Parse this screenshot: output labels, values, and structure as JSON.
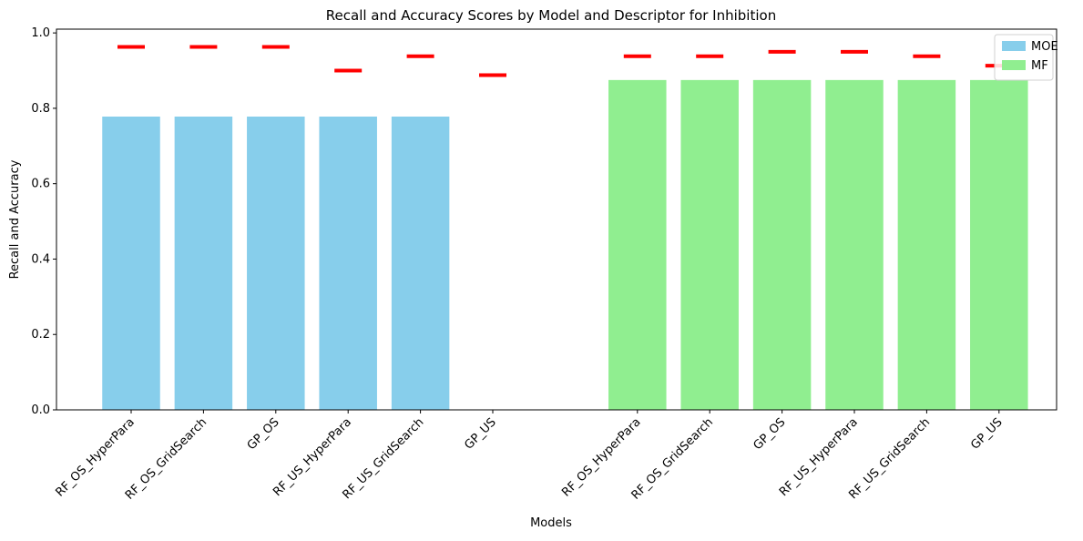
{
  "chart_data": {
    "type": "bar",
    "title": "Recall and Accuracy Scores by Model and Descriptor for Inhibition",
    "xlabel": "Models",
    "ylabel": "Recall and Accuracy",
    "ylim": [
      0,
      1.01
    ],
    "yticks": [
      0.0,
      0.2,
      0.4,
      0.6,
      0.8,
      1.0
    ],
    "ytick_labels": [
      "0.0",
      "0.2",
      "0.4",
      "0.6",
      "0.8",
      "1.0"
    ],
    "legend_position": "top-right",
    "groups": [
      {
        "name": "MOE",
        "color": "#87CEEB",
        "categories": [
          "RF_OS_HyperPara",
          "RF_OS_GridSearch",
          "GP_OS",
          "RF_US_HyperPara",
          "RF_US_GridSearch",
          "GP_US"
        ],
        "recall": [
          0.778,
          0.778,
          0.778,
          0.778,
          0.778,
          0.0
        ],
        "accuracy": [
          0.963,
          0.963,
          0.963,
          0.9,
          0.938,
          0.888
        ]
      },
      {
        "name": "MF",
        "color": "#90EE90",
        "categories": [
          "RF_OS_HyperPara",
          "RF_OS_GridSearch",
          "GP_OS",
          "RF_US_HyperPara",
          "RF_US_GridSearch",
          "GP_US"
        ],
        "recall": [
          0.875,
          0.875,
          0.875,
          0.875,
          0.875,
          0.875
        ],
        "accuracy": [
          0.938,
          0.938,
          0.95,
          0.95,
          0.938,
          0.913
        ]
      }
    ],
    "accuracy_marker_color": "#FF0000"
  }
}
